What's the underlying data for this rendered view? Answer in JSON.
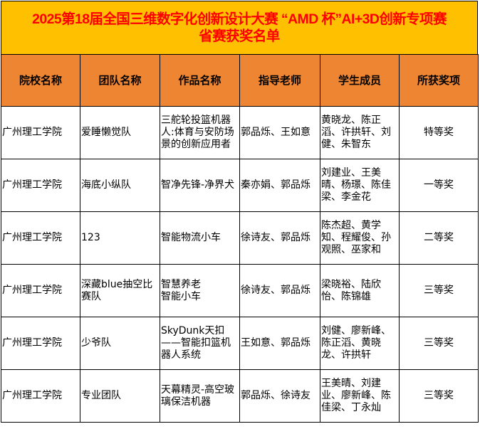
{
  "title": {
    "line1": "2025第18届全国三维数字化创新设计大赛 “AMD 杯”AI+3D创新专项赛",
    "line2": "省赛获奖名单"
  },
  "colors": {
    "title_bg": "#FFC000",
    "title_text": "#FF0000",
    "header_bg": "#ED8533"
  },
  "headers": [
    "院校名称",
    "团队名称",
    "作品名称",
    "指导老师",
    "学生成员",
    "所获奖项"
  ],
  "rows": [
    [
      "广州理工学院",
      "爱睡懒觉队",
      "三舵轮投篮机器人:体育与安防场景的创新应用者",
      "郭品烁、王如意",
      "黄晓龙、陈正滔、许拱轩、刘健、朱智东",
      "特等奖"
    ],
    [
      "广州理工学院",
      "海底小纵队",
      "智净先锋-净界犬",
      "秦亦娟、郭品烁",
      "刘建业、王美晴、杨璟、陈佳梁、李金花",
      "一等奖"
    ],
    [
      "广州理工学院",
      "123",
      "智能物流小车",
      "徐诗友、郭品烁",
      "陈杰超、黄学知、程耀俊、孙观照、巫家和",
      "二等奖"
    ],
    [
      "广州理工学院",
      "深藏blue抽空比赛队",
      "智慧养老\n智能小车",
      "徐诗友、郭品烁",
      "梁晓裕、陆欣怡、陈锦雄",
      "三等奖"
    ],
    [
      "广州理工学院",
      "少爷队",
      "SkyDunk天扣——智能扣篮机器人系统",
      "王如意、郭品烁",
      "刘健、廖新峰、陈正滔、黄晓龙、许拱轩",
      "三等奖"
    ],
    [
      "广州理工学院",
      "专业团队",
      "天幕精灵-高空玻璃保洁机器",
      "郭品烁、徐诗友",
      "王美晴、刘建业、廖新峰、陈佳梁、丁永灿",
      "三等奖"
    ]
  ]
}
